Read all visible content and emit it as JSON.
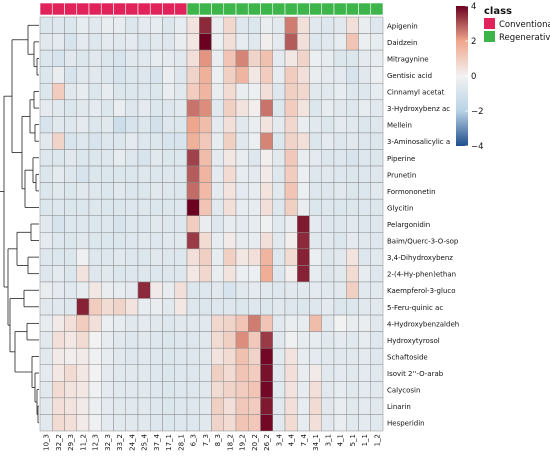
{
  "chart_data": {
    "type": "heatmap",
    "title": "",
    "xlabel": "",
    "ylabel": "",
    "annotation": {
      "title": "class",
      "groups": [
        {
          "name": "Conventional",
          "color": "#e0235a"
        },
        {
          "name": "Regenerative",
          "color": "#3db54a"
        }
      ],
      "column_classes": [
        "Conventional",
        "Conventional",
        "Conventional",
        "Conventional",
        "Conventional",
        "Conventional",
        "Conventional",
        "Conventional",
        "Conventional",
        "Conventional",
        "Conventional",
        "Conventional",
        "Regenerative",
        "Regenerative",
        "Regenerative",
        "Regenerative",
        "Regenerative",
        "Regenerative",
        "Regenerative",
        "Regenerative",
        "Regenerative",
        "Regenerative",
        "Regenerative",
        "Regenerative",
        "Regenerative",
        "Regenerative",
        "Regenerative",
        "Regenerative"
      ]
    },
    "colorscale": {
      "min": -4,
      "max": 4,
      "ticks": [
        4,
        2,
        0,
        -2,
        -4
      ],
      "stops": [
        "#1f4e8c",
        "#b8d3e6",
        "#f2f2f2",
        "#f0a68c",
        "#6b0020"
      ]
    },
    "columns": [
      "10_3",
      "32_2",
      "29_3",
      "11_2",
      "12_3",
      "32_3",
      "33_2",
      "24_4",
      "25_4",
      "37_4",
      "17_1",
      "28_1",
      "6_3",
      "7_3",
      "8_3",
      "18_2",
      "19_2",
      "20_2",
      "26_2",
      "3_4",
      "4_4",
      "7_4",
      "34_1",
      "3_1",
      "4_1",
      "5_1",
      "1_1",
      "1_2"
    ],
    "rows": [
      "Apigenin",
      "Daidzein",
      "Mitragynine",
      "Gentisic acid",
      "Cinnamyl acetat",
      "3-Hydroxybenz ac",
      "Mellein",
      "3-Aminosalicylic a",
      "Piperine",
      "Prunetin",
      "Formononetin",
      "Glycitin",
      "Pelargonidin",
      "Baim/Querc-3-O-sop",
      "3,4-Dihydroxybenz",
      "2-(4-Hy-phen)ethan",
      "Kaempferol-3-gluco",
      "5-Feru-quinic ac",
      "4-Hydroxybenzaldeh",
      "Hydroxytyrosol",
      "Schaftoside",
      "Isovit 2''-O-arab",
      "Calycosin",
      "Linarin",
      "Hesperidin"
    ],
    "values": [
      [
        -0.8,
        -0.7,
        -0.8,
        -0.4,
        -0.6,
        -0.3,
        -0.4,
        -0.8,
        -0.5,
        -0.4,
        -0.8,
        -0.4,
        0.4,
        3.5,
        -0.3,
        0.7,
        -0.7,
        -0.8,
        -0.3,
        -0.6,
        2.5,
        0.5,
        -0.6,
        -0.7,
        -0.6,
        0.5,
        -0.3,
        -0.7
      ],
      [
        -0.6,
        -0.5,
        -0.9,
        -0.5,
        -0.7,
        -0.5,
        -0.6,
        -0.5,
        -0.7,
        -0.6,
        -0.7,
        -0.3,
        0.3,
        4.0,
        -0.2,
        0.5,
        -0.4,
        -0.6,
        0.1,
        -0.5,
        2.9,
        0.5,
        -0.7,
        -0.6,
        -0.4,
        1.2,
        -0.2,
        -0.4
      ],
      [
        -0.8,
        -0.9,
        -0.6,
        -0.8,
        -0.6,
        -0.8,
        -0.9,
        -0.6,
        -0.6,
        -0.4,
        -0.5,
        -0.6,
        0.5,
        2.2,
        -0.3,
        1.2,
        2.4,
        0.8,
        1.3,
        -0.5,
        0.3,
        0.8,
        -0.2,
        -0.4,
        -0.8,
        -0.8,
        -0.5,
        -0.4
      ],
      [
        -0.8,
        -0.3,
        -0.9,
        -0.6,
        -0.6,
        -0.7,
        -0.9,
        -0.8,
        -0.7,
        -0.9,
        -0.2,
        -0.7,
        0.8,
        1.7,
        -0.2,
        0.9,
        1.6,
        0.3,
        1.0,
        -0.4,
        1.0,
        0.5,
        -0.3,
        -0.5,
        -0.5,
        -0.9,
        -0.6,
        -0.2
      ],
      [
        -0.8,
        1.0,
        -0.6,
        -0.4,
        -0.8,
        -0.4,
        -0.8,
        -0.8,
        -0.7,
        -0.8,
        -0.3,
        -0.6,
        1.0,
        1.6,
        -0.3,
        0.6,
        -0.3,
        -0.2,
        0.5,
        -0.7,
        0.9,
        0.7,
        -0.6,
        -0.6,
        -0.4,
        -0.7,
        -0.7,
        -0.4
      ],
      [
        -0.5,
        -0.6,
        -0.8,
        -0.6,
        -0.5,
        -0.8,
        -0.3,
        -0.7,
        -0.5,
        -0.8,
        -0.7,
        -0.6,
        2.6,
        2.3,
        -0.6,
        0.9,
        0.4,
        0.1,
        2.6,
        -0.8,
        1.0,
        0.4,
        -0.8,
        -0.4,
        -0.6,
        -0.7,
        -0.4,
        -0.6
      ],
      [
        -0.9,
        -0.6,
        -0.7,
        -0.5,
        -0.8,
        -0.6,
        -1.3,
        -0.9,
        -0.8,
        -1.1,
        -0.7,
        -0.8,
        2.0,
        1.4,
        -0.5,
        0.5,
        -0.6,
        -0.3,
        0.4,
        -0.5,
        0.7,
        -0.3,
        -0.6,
        -0.8,
        -0.5,
        -0.6,
        -0.8,
        -0.7
      ],
      [
        -0.6,
        0.8,
        -0.9,
        -0.7,
        -0.9,
        -0.7,
        -0.8,
        -0.5,
        -0.7,
        -0.8,
        -0.9,
        -0.9,
        1.7,
        1.1,
        -0.4,
        0.9,
        -0.6,
        -0.2,
        2.4,
        -0.8,
        0.8,
        0.5,
        -0.8,
        -0.5,
        -0.7,
        -0.6,
        -0.7,
        -0.8
      ],
      [
        -0.7,
        -0.8,
        -0.6,
        -0.8,
        -0.8,
        -0.7,
        -0.4,
        -0.7,
        -0.9,
        -0.6,
        -0.8,
        -0.8,
        3.2,
        1.4,
        -0.5,
        0.3,
        -0.3,
        -0.7,
        0.1,
        -0.6,
        1.1,
        -0.3,
        -0.5,
        -0.8,
        -0.7,
        -0.9,
        -0.7,
        -0.8
      ],
      [
        -0.8,
        -0.5,
        -0.7,
        -0.9,
        -0.8,
        -0.8,
        -0.8,
        -0.8,
        -0.7,
        -0.8,
        -0.7,
        -0.7,
        2.9,
        1.6,
        -0.5,
        0.6,
        -0.4,
        -0.5,
        0.2,
        -0.7,
        1.0,
        -0.2,
        -0.7,
        -0.6,
        -0.7,
        -0.8,
        -0.7,
        -0.7
      ],
      [
        -0.8,
        -0.6,
        -0.8,
        -0.6,
        -0.7,
        -0.8,
        -0.6,
        -0.8,
        -0.8,
        -0.6,
        -0.7,
        -0.8,
        2.7,
        1.5,
        -0.5,
        0.4,
        -0.5,
        -0.4,
        0.4,
        -0.6,
        1.2,
        -0.2,
        -0.7,
        -0.7,
        -0.6,
        -0.8,
        -0.8,
        -0.6
      ],
      [
        -0.8,
        -0.7,
        -0.8,
        -0.8,
        -0.7,
        -0.8,
        -0.8,
        -0.7,
        -0.7,
        -0.8,
        -0.8,
        -0.7,
        4.2,
        1.2,
        -0.6,
        0.5,
        -0.4,
        -0.4,
        0.5,
        -0.7,
        0.9,
        -0.3,
        -0.8,
        -0.7,
        -0.8,
        -0.8,
        -0.7,
        -0.8
      ],
      [
        -0.6,
        -0.9,
        -0.7,
        -0.7,
        -0.8,
        -0.7,
        -0.9,
        -0.7,
        -0.8,
        -0.6,
        -0.7,
        -0.7,
        1.0,
        -0.3,
        -0.7,
        -0.4,
        -0.5,
        -0.4,
        -0.1,
        -0.6,
        -0.3,
        3.7,
        -0.5,
        -0.7,
        -0.7,
        -0.6,
        -0.7,
        -0.7
      ],
      [
        -0.5,
        -0.7,
        -0.8,
        -0.6,
        -0.8,
        -0.8,
        -0.8,
        -0.7,
        -0.6,
        -0.7,
        -0.6,
        -0.6,
        3.3,
        0.6,
        -0.4,
        0.2,
        -0.4,
        -0.4,
        0.5,
        -0.6,
        0.1,
        3.5,
        -0.6,
        -0.6,
        -0.8,
        -0.5,
        -0.6,
        -0.7
      ],
      [
        -0.7,
        -0.8,
        -0.8,
        -0.1,
        -0.7,
        -0.7,
        -0.6,
        -0.7,
        -0.8,
        -0.6,
        -0.7,
        -0.7,
        0.5,
        0.9,
        -0.4,
        0.9,
        0.3,
        0.5,
        1.6,
        -0.7,
        0.6,
        3.6,
        -0.2,
        -0.7,
        -0.6,
        0.4,
        -0.7,
        -0.6
      ],
      [
        -0.7,
        -0.5,
        -0.8,
        0.4,
        -0.7,
        -0.6,
        -0.8,
        -0.7,
        -0.7,
        -0.7,
        -0.7,
        -0.7,
        0.3,
        0.7,
        -0.3,
        0.4,
        -0.2,
        -0.2,
        1.8,
        -0.7,
        0.1,
        3.6,
        -0.4,
        -0.7,
        -0.6,
        0.6,
        -0.4,
        -0.7
      ],
      [
        -0.3,
        -0.5,
        -0.6,
        -0.4,
        0.3,
        -0.3,
        -0.4,
        -0.5,
        3.5,
        0.2,
        -0.4,
        0.5,
        -0.8,
        -0.7,
        -0.6,
        -0.9,
        -0.6,
        -0.5,
        -0.6,
        -0.7,
        -0.6,
        -0.6,
        -0.5,
        -0.6,
        -0.6,
        0.9,
        -0.6,
        -0.6
      ],
      [
        -0.6,
        -0.6,
        -0.7,
        3.6,
        1.0,
        0.6,
        0.8,
        0.4,
        -0.4,
        -0.3,
        -0.6,
        0.3,
        -0.7,
        -0.8,
        -0.7,
        -0.7,
        -0.8,
        -0.7,
        -0.8,
        -0.6,
        -0.7,
        -0.8,
        -0.7,
        -0.5,
        -0.8,
        -0.8,
        -0.6,
        -0.6
      ],
      [
        -0.4,
        0.2,
        0.5,
        1.0,
        0.5,
        -0.2,
        -0.4,
        -0.6,
        -0.5,
        -0.6,
        -0.7,
        -0.6,
        -0.6,
        -0.6,
        0.7,
        0.8,
        1.2,
        2.5,
        1.2,
        -0.6,
        -0.3,
        -0.4,
        1.4,
        -0.6,
        0.0,
        -0.3,
        -0.3,
        -0.6
      ],
      [
        -0.6,
        0.5,
        0.3,
        0.6,
        0.0,
        -0.4,
        -0.6,
        -0.7,
        -0.6,
        -0.7,
        -0.8,
        -0.7,
        -0.7,
        -0.6,
        0.6,
        0.9,
        2.3,
        1.1,
        3.3,
        -0.6,
        -0.1,
        -0.4,
        -0.4,
        -0.6,
        -0.5,
        -0.6,
        -0.4,
        -0.7
      ],
      [
        -0.6,
        0.2,
        0.1,
        0.2,
        -0.1,
        -0.4,
        -0.6,
        -0.7,
        -0.6,
        -0.7,
        -0.8,
        -0.7,
        -0.7,
        -0.6,
        0.4,
        0.6,
        1.3,
        0.8,
        3.9,
        -0.6,
        0.4,
        -0.4,
        -0.5,
        -0.6,
        -0.6,
        -0.6,
        -0.5,
        -0.7
      ],
      [
        -0.5,
        0.3,
        0.6,
        0.3,
        0.0,
        -0.5,
        -0.6,
        -0.6,
        -0.6,
        -0.7,
        -0.8,
        -0.7,
        -0.7,
        -0.6,
        0.9,
        0.6,
        1.2,
        1.0,
        3.8,
        -0.6,
        0.5,
        -0.3,
        0.2,
        -0.6,
        -0.5,
        -0.6,
        -0.5,
        -0.6
      ],
      [
        -0.6,
        0.6,
        0.4,
        0.3,
        -0.1,
        -0.5,
        -0.6,
        -0.6,
        -0.6,
        -0.7,
        -0.8,
        -0.7,
        -0.7,
        -0.6,
        0.6,
        0.8,
        1.0,
        1.2,
        3.9,
        -0.6,
        0.4,
        -0.4,
        0.5,
        -0.6,
        -0.4,
        -0.6,
        -0.5,
        -0.6
      ],
      [
        -0.6,
        0.5,
        0.4,
        0.2,
        -0.2,
        -0.5,
        -0.6,
        -0.6,
        -0.6,
        -0.7,
        -0.8,
        -0.7,
        -0.7,
        -0.6,
        0.9,
        0.5,
        1.1,
        1.0,
        3.7,
        -0.6,
        0.5,
        -0.4,
        0.6,
        -0.6,
        -0.3,
        -0.6,
        -0.5,
        -0.6
      ],
      [
        -0.6,
        0.6,
        0.5,
        0.2,
        -0.1,
        -0.5,
        -0.6,
        -0.6,
        -0.6,
        -0.7,
        -0.8,
        -0.7,
        -0.7,
        -0.6,
        0.8,
        0.6,
        1.2,
        1.1,
        3.9,
        -0.6,
        0.6,
        -0.4,
        0.5,
        -0.6,
        -0.3,
        -0.6,
        -0.5,
        -0.6
      ]
    ]
  }
}
